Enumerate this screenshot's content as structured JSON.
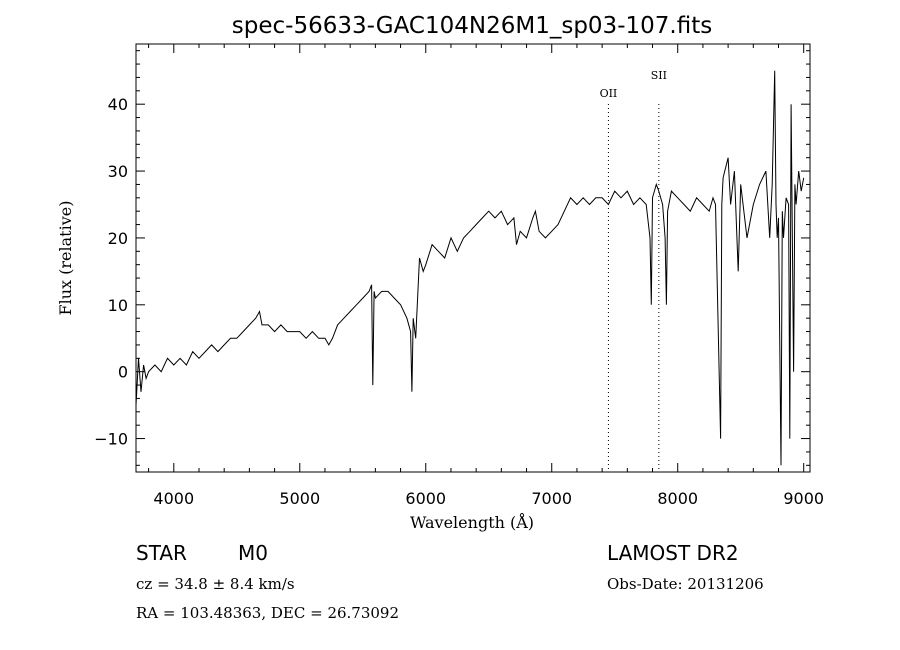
{
  "chart_data": {
    "type": "line",
    "title": "spec-56633-GAC104N26M1_sp03-107.fits",
    "xlabel": "Wavelength (Å)",
    "ylabel": "Flux (relative)",
    "xlim": [
      3700,
      9050
    ],
    "ylim": [
      -15,
      49
    ],
    "x_ticks": [
      4000,
      5000,
      6000,
      7000,
      8000,
      9000
    ],
    "y_ticks": [
      -10,
      0,
      10,
      20,
      30,
      40
    ],
    "grid": false,
    "line_color": "#000000",
    "series": [
      {
        "x": [
          3700,
          3720,
          3740,
          3760,
          3780,
          3800,
          3850,
          3900,
          3950,
          4000,
          4050,
          4100,
          4150,
          4200,
          4250,
          4300,
          4350,
          4400,
          4450,
          4500,
          4550,
          4600,
          4650,
          4680,
          4700,
          4750,
          4800,
          4850,
          4900,
          4950,
          5000,
          5050,
          5100,
          5150,
          5200,
          5230,
          5260,
          5300,
          5350,
          5400,
          5450,
          5500,
          5550,
          5570,
          5580,
          5590,
          5600,
          5650,
          5700,
          5750,
          5800,
          5850,
          5880,
          5890,
          5900,
          5920,
          5950,
          5980,
          6000,
          6050,
          6100,
          6150,
          6200,
          6250,
          6300,
          6350,
          6400,
          6450,
          6500,
          6550,
          6600,
          6650,
          6700,
          6720,
          6750,
          6800,
          6850,
          6870,
          6900,
          6950,
          7000,
          7050,
          7100,
          7150,
          7200,
          7250,
          7300,
          7350,
          7400,
          7450,
          7500,
          7550,
          7600,
          7650,
          7700,
          7750,
          7780,
          7790,
          7800,
          7830,
          7850,
          7880,
          7900,
          7910,
          7920,
          7950,
          8000,
          8050,
          8100,
          8150,
          8200,
          8250,
          8280,
          8300,
          8340,
          8350,
          8360,
          8400,
          8420,
          8450,
          8480,
          8500,
          8550,
          8600,
          8650,
          8700,
          8730,
          8750,
          8770,
          8780,
          8790,
          8800,
          8820,
          8830,
          8840,
          8860,
          8880,
          8890,
          8900,
          8920,
          8930,
          8940,
          8960,
          8980,
          9000
        ],
        "y": [
          -5,
          2,
          -3,
          1,
          -1,
          0,
          1,
          0,
          2,
          1,
          2,
          1,
          3,
          2,
          3,
          4,
          3,
          4,
          5,
          5,
          6,
          7,
          8,
          9,
          7,
          7,
          6,
          7,
          6,
          6,
          6,
          5,
          6,
          5,
          5,
          4,
          5,
          7,
          8,
          9,
          10,
          11,
          12,
          13,
          -2,
          12,
          11,
          12,
          12,
          11,
          10,
          8,
          6,
          -3,
          8,
          5,
          17,
          15,
          16,
          19,
          18,
          17,
          20,
          18,
          20,
          21,
          22,
          23,
          24,
          23,
          24,
          22,
          23,
          19,
          21,
          20,
          23,
          24,
          21,
          20,
          21,
          22,
          24,
          26,
          25,
          26,
          25,
          26,
          26,
          25,
          27,
          26,
          27,
          25,
          26,
          25,
          20,
          10,
          26,
          28,
          27,
          25,
          20,
          10,
          24,
          27,
          26,
          25,
          24,
          26,
          25,
          24,
          26,
          25,
          -10,
          25,
          29,
          32,
          25,
          30,
          15,
          28,
          20,
          25,
          28,
          30,
          20,
          28,
          45,
          25,
          20,
          23,
          -14,
          24,
          20,
          26,
          25,
          -10,
          40,
          0,
          28,
          25,
          30,
          27,
          29
        ]
      }
    ],
    "annotations": [
      {
        "label": "OII",
        "x": 7450
      },
      {
        "label": "SII",
        "x": 7850
      }
    ]
  },
  "info": {
    "object_class": "STAR",
    "subclass": "M0",
    "release": "LAMOST DR2",
    "cz": "cz = 34.8 ± 8.4 km/s",
    "obs_date": "Obs-Date: 20131206",
    "radec": "RA = 103.48363, DEC =  26.73092"
  }
}
